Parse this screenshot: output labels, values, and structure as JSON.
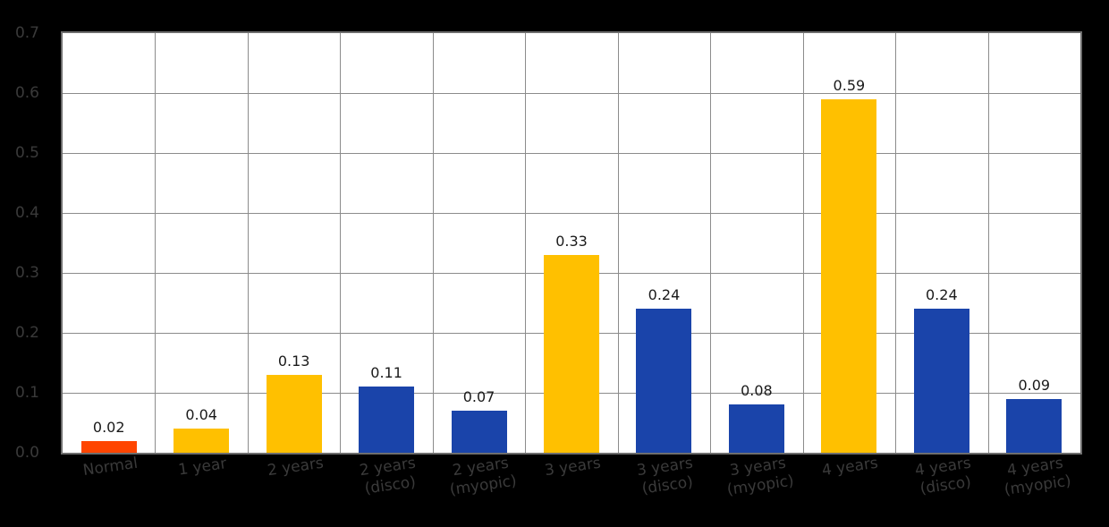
{
  "chart_data": {
    "type": "bar",
    "title": "",
    "xlabel": "",
    "ylabel": "",
    "categories": [
      "Normal",
      "1 year",
      "2 years",
      "2 years\n(disco)",
      "2 years\n(myopic)",
      "3 years",
      "3 years\n(disco)",
      "3 years\n(myopic)",
      "4 years",
      "4 years\n(disco)",
      "4 years\n(myopic)"
    ],
    "values": [
      0.02,
      0.04,
      0.13,
      0.11,
      0.07,
      0.33,
      0.24,
      0.08,
      0.59,
      0.24,
      0.09
    ],
    "value_labels": [
      "0.02",
      "0.04",
      "0.13",
      "0.11",
      "0.07",
      "0.33",
      "0.24",
      "0.08",
      "0.59",
      "0.24",
      "0.09"
    ],
    "bar_colors": [
      "#ff4500",
      "#ffc000",
      "#ffc000",
      "#1a44aa",
      "#1a44aa",
      "#ffc000",
      "#1a44aa",
      "#1a44aa",
      "#ffc000",
      "#1a44aa",
      "#1a44aa"
    ],
    "ylim": [
      0.0,
      0.7
    ],
    "yticks": [
      "0.0",
      "0.1",
      "0.2",
      "0.3",
      "0.4",
      "0.5",
      "0.6",
      "0.7"
    ],
    "grid": true,
    "legend": "none",
    "colors": {
      "background": "#000000",
      "plot_background": "#ffffff",
      "grid": "#8c8c8c",
      "plot_border": "#6e6e6e",
      "axis_text": "#3a3a3a",
      "value_text": "#1a1a1a",
      "bar_orange": "#ff4500",
      "bar_yellow": "#ffc000",
      "bar_blue": "#1a44aa"
    }
  }
}
